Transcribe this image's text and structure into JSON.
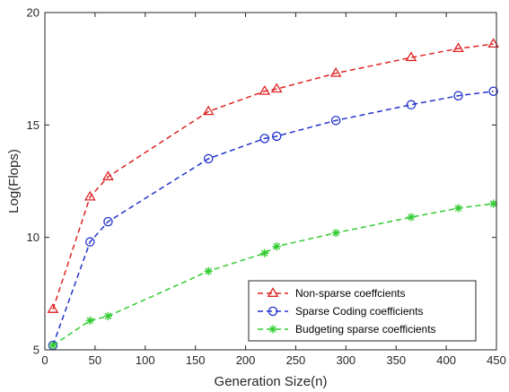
{
  "chart_data": {
    "type": "line",
    "title": "",
    "xlabel": "Generation Size(n)",
    "ylabel": "Log(Flops)",
    "xlim": [
      0,
      450
    ],
    "ylim": [
      5,
      20
    ],
    "xticks": [
      0,
      50,
      100,
      150,
      200,
      250,
      300,
      350,
      400,
      450
    ],
    "yticks": [
      5,
      10,
      15,
      20
    ],
    "grid": false,
    "box": true,
    "legend_position": "bottom-right",
    "series": [
      {
        "name": "Non-sparse coeffcients",
        "color": "#dd2222",
        "marker": "triangle",
        "line_style": "dashed",
        "x": [
          8,
          45,
          63,
          163,
          219,
          231,
          290,
          365,
          412,
          447
        ],
        "y": [
          6.8,
          11.8,
          12.7,
          15.6,
          16.5,
          16.6,
          17.3,
          18.0,
          18.4,
          18.6
        ]
      },
      {
        "name": "Sparse Coding coefficients",
        "color": "#2233cc",
        "marker": "circle",
        "line_style": "dashed",
        "x": [
          8,
          45,
          63,
          163,
          219,
          231,
          290,
          365,
          412,
          447
        ],
        "y": [
          5.2,
          9.8,
          10.7,
          13.5,
          14.4,
          14.5,
          15.2,
          15.9,
          16.3,
          16.5
        ]
      },
      {
        "name": "Budgeting sparse coefficients",
        "color": "#33cc33",
        "marker": "asterisk",
        "line_style": "dashed",
        "x": [
          8,
          45,
          63,
          163,
          219,
          231,
          290,
          365,
          412,
          447
        ],
        "y": [
          5.2,
          6.3,
          6.5,
          8.5,
          9.3,
          9.6,
          10.2,
          10.9,
          11.3,
          11.5
        ]
      }
    ]
  }
}
